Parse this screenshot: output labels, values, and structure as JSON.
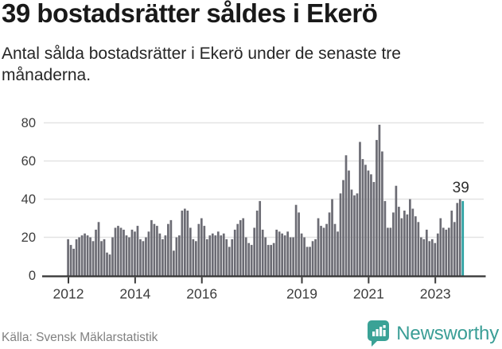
{
  "header": {
    "title": "39 bostadsrätter såldes i Ekerö",
    "subtitle": "Antal sålda bostadsrätter i Ekerö under de senaste tre månaderna."
  },
  "chart_data": {
    "type": "bar",
    "title": "39 bostadsrätter såldes i Ekerö",
    "description": "Antal sålda bostadsrätter i Ekerö under de senaste tre månaderna.",
    "x_unit": "month",
    "start_month": "2012-01",
    "end_month": "2023-11",
    "x_axis": {
      "ticks": [
        2012,
        2014,
        2016,
        2019,
        2021,
        2023
      ]
    },
    "y_axis": {
      "ticks": [
        0,
        20,
        40,
        60,
        80
      ],
      "range": [
        0,
        85
      ]
    },
    "grid": true,
    "values": [
      19,
      16,
      14,
      19,
      20,
      21,
      22,
      21,
      20,
      18,
      24,
      28,
      18,
      19,
      12,
      11,
      20,
      25,
      26,
      25,
      24,
      21,
      20,
      24,
      23,
      26,
      19,
      18,
      20,
      23,
      29,
      27,
      26,
      22,
      19,
      21,
      27,
      29,
      13,
      20,
      21,
      34,
      35,
      34,
      25,
      19,
      18,
      27,
      30,
      26,
      19,
      21,
      22,
      21,
      23,
      21,
      22,
      19,
      15,
      19,
      24,
      27,
      29,
      30,
      20,
      17,
      16,
      25,
      34,
      39,
      24,
      20,
      16,
      16,
      17,
      24,
      23,
      22,
      21,
      23,
      20,
      20,
      37,
      33,
      22,
      20,
      15,
      15,
      18,
      19,
      30,
      26,
      25,
      27,
      33,
      40,
      27,
      23,
      43,
      50,
      63,
      55,
      45,
      42,
      43,
      70,
      61,
      58,
      55,
      53,
      49,
      71,
      79,
      65,
      39,
      25,
      25,
      33,
      47,
      36,
      30,
      34,
      32,
      40,
      35,
      31,
      28,
      20,
      19,
      24,
      18,
      19,
      17,
      22,
      30,
      25,
      24,
      25,
      34,
      28,
      38,
      40,
      39
    ],
    "highlight_last_bar": true,
    "annotation": {
      "text": "39",
      "value": 39
    }
  },
  "footer": {
    "source": "Källa: Svensk Mäklarstatistik",
    "brand": "Newsworthy"
  },
  "colors": {
    "bar": "#6c6c74",
    "highlight": "#2aa0a1",
    "grid": "#e3e3e3",
    "axis": "#3a3a3a",
    "tick_label": "#3d3d3d",
    "annotation": "#2e2e2e",
    "brand": "#3a9e96"
  }
}
